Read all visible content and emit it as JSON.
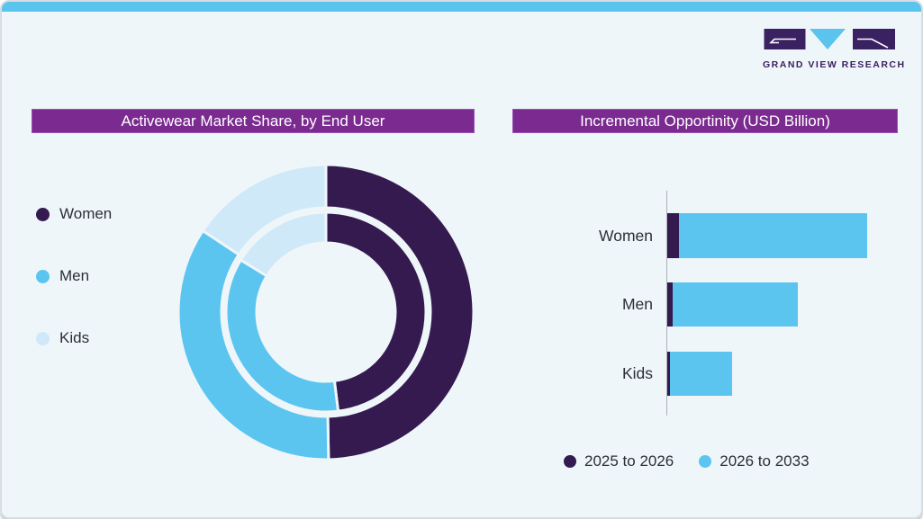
{
  "logo": {
    "brand": "GRAND VIEW RESEARCH"
  },
  "colors": {
    "accent_bar": "#5BC4EE",
    "banner": "#7B2B90",
    "card_bg": "#EFF6FA",
    "logo_purple": "#3A2161",
    "logo_triangle": "#5BC4EE",
    "women": "#341A4F",
    "men": "#5BC5F0",
    "kids": "#CFE9F8",
    "series_2025": "#341A4F",
    "series_2026": "#5BC5F0",
    "text": "#2B2F38",
    "axis": "#ABB1B9"
  },
  "chart_data": [
    {
      "type": "pie",
      "subtype": "double-ring-donut",
      "title": "Activewear Market Share, by End User",
      "legend": [
        "Women",
        "Men",
        "Kids"
      ],
      "legend_position": "left",
      "data_labels_shown": false,
      "rings": [
        {
          "name": "outer",
          "segments": [
            {
              "label": "Women",
              "color_key": "women",
              "start_deg": 0,
              "end_deg": 179,
              "share_pct": 49.7
            },
            {
              "label": "Men",
              "color_key": "men",
              "start_deg": 179,
              "end_deg": 303.5,
              "share_pct": 34.6
            },
            {
              "label": "Kids",
              "color_key": "kids",
              "start_deg": 303.5,
              "end_deg": 360,
              "share_pct": 15.7
            }
          ]
        },
        {
          "name": "inner",
          "segments": [
            {
              "label": "Women",
              "color_key": "women",
              "start_deg": 0,
              "end_deg": 173,
              "share_pct": 48.1
            },
            {
              "label": "Men",
              "color_key": "men",
              "start_deg": 173,
              "end_deg": 301.5,
              "share_pct": 35.7
            },
            {
              "label": "Kids",
              "color_key": "kids",
              "start_deg": 301.5,
              "end_deg": 360,
              "share_pct": 16.2
            }
          ]
        }
      ],
      "note": "no numeric labels printed; shares estimated from segment angles"
    },
    {
      "type": "bar",
      "orientation": "horizontal",
      "stacked": true,
      "title": "Incremental Opportinity (USD Billion)",
      "categories": [
        "Women",
        "Men",
        "Kids"
      ],
      "series": [
        {
          "name": "2025 to 2026",
          "color_key": "series_2025",
          "values": [
            6.4,
            3.1,
            1.5
          ]
        },
        {
          "name": "2026 to 2033",
          "color_key": "series_2026",
          "values": [
            100,
            66.5,
            33
          ]
        }
      ],
      "legend_position": "bottom",
      "axis_labels_shown": false,
      "value_note": "axis has no tick labels; values are relative estimates scaled so the longest segment = 100"
    }
  ]
}
